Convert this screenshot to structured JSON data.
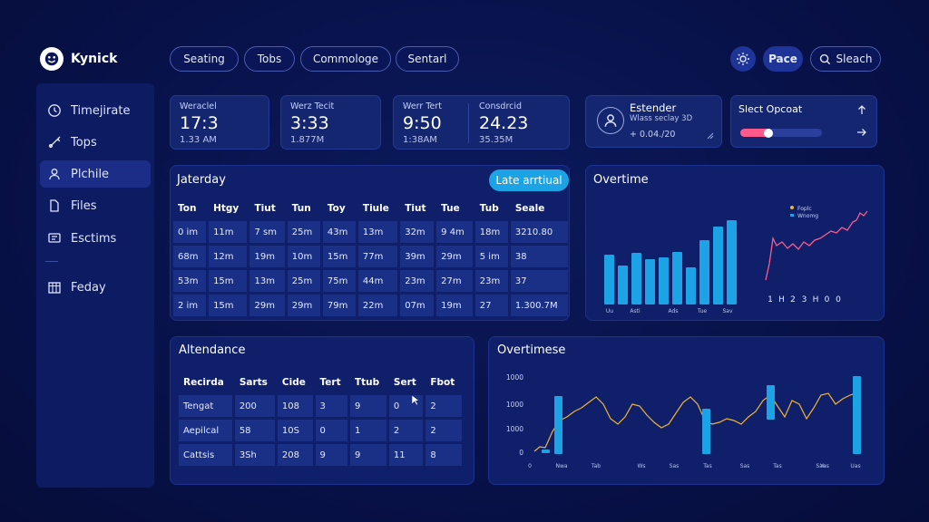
{
  "app": {
    "name": "Kynick"
  },
  "top_tabs": [
    "Seating",
    "Tobs",
    "Commologe",
    "Sentarl"
  ],
  "top_right": {
    "page_button": "Pace",
    "search_label": "Sleach"
  },
  "sidebar": {
    "items": [
      {
        "label": "Timejirate",
        "icon": "clock-icon"
      },
      {
        "label": "Tops",
        "icon": "tools-icon"
      },
      {
        "label": "Plchile",
        "icon": "profile-icon"
      },
      {
        "label": "Files",
        "icon": "file-icon"
      },
      {
        "label": "Esctims",
        "icon": "monitor-icon"
      },
      {
        "label": "Feday",
        "icon": "calendar-icon"
      }
    ]
  },
  "stats": [
    {
      "label": "Weraclel",
      "value": "17:3",
      "sub": "1.33 AM"
    },
    {
      "label": "Werz Tecit",
      "value": "3:33",
      "sub": "1.877M"
    },
    {
      "label": "Werr Tert",
      "value": "9:50",
      "sub": "1:38AM"
    },
    {
      "label": "Consdrcid",
      "value": "24.23",
      "sub": "35.35M"
    }
  ],
  "user_card": {
    "title": "Estender",
    "subtitle": "Wlass seclay 3D",
    "detail": "+ 0.04./20"
  },
  "progress_card": {
    "title": "Slect Opcoat",
    "progress": 0.36
  },
  "schedule": {
    "title": "Jaterday",
    "action_button": "Late arrtiual",
    "columns": [
      "Ton",
      "Htgy",
      "Tiut",
      "Tun",
      "Toy",
      "Tiule",
      "Tiut",
      "Tue",
      "Tub",
      "Seale"
    ],
    "rows": [
      [
        "0 im",
        "11m",
        "7 sm",
        "25m",
        "43m",
        "13m",
        "32m",
        "9 4m",
        "18m",
        "3210.80"
      ],
      [
        "68m",
        "12m",
        "19m",
        "10m",
        "15m",
        "77m",
        "39m",
        "29m",
        "5 im",
        "38"
      ],
      [
        "53m",
        "15m",
        "13m",
        "25m",
        "75m",
        "44m",
        "23m",
        "27m",
        "23m",
        "37"
      ],
      [
        "2 im",
        "15m",
        "29m",
        "29m",
        "79m",
        "22m",
        "07m",
        "19m",
        "27",
        "1.300.7M"
      ]
    ]
  },
  "overtime_top": {
    "title": "Overtime",
    "legend": [
      "Foplc",
      "Wnomg"
    ],
    "x_ticks_bar": [
      "Uu",
      "Asti",
      "Ads",
      "Tue",
      "Sav"
    ],
    "x_ticks_line": [
      "1",
      "H",
      "2",
      "3",
      "H",
      "0",
      "0"
    ]
  },
  "attendance": {
    "title": "Altendance",
    "columns": [
      "Recirda",
      "Sarts",
      "Cide",
      "Tert",
      "Ttub",
      "Sert",
      "Fbot"
    ],
    "rows": [
      [
        "Tengat",
        "200",
        "108",
        "3",
        "9",
        "0",
        "2"
      ],
      [
        "Aepilcal",
        "58",
        "10S",
        "0",
        "1",
        "2",
        "2"
      ],
      [
        "Cattsis",
        "3Sh",
        "208",
        "9",
        "9",
        "11",
        "8"
      ]
    ]
  },
  "overtime_bottom": {
    "title": "Overtimese",
    "y_ticks": [
      "1000",
      "1000",
      "1000",
      "0"
    ],
    "x_ticks": [
      "0",
      "Nwa",
      "Tab",
      "Ws",
      "Sas",
      "Tas",
      "Sas",
      "Tas",
      "Sao",
      "Yas",
      "Uas"
    ]
  },
  "colors": {
    "accent": "#1ba3e6",
    "bar": "#1ba3e6",
    "line_pink": "#ff5a8a",
    "line_gold": "#f2b531",
    "progress": "#ff5a8a"
  }
}
